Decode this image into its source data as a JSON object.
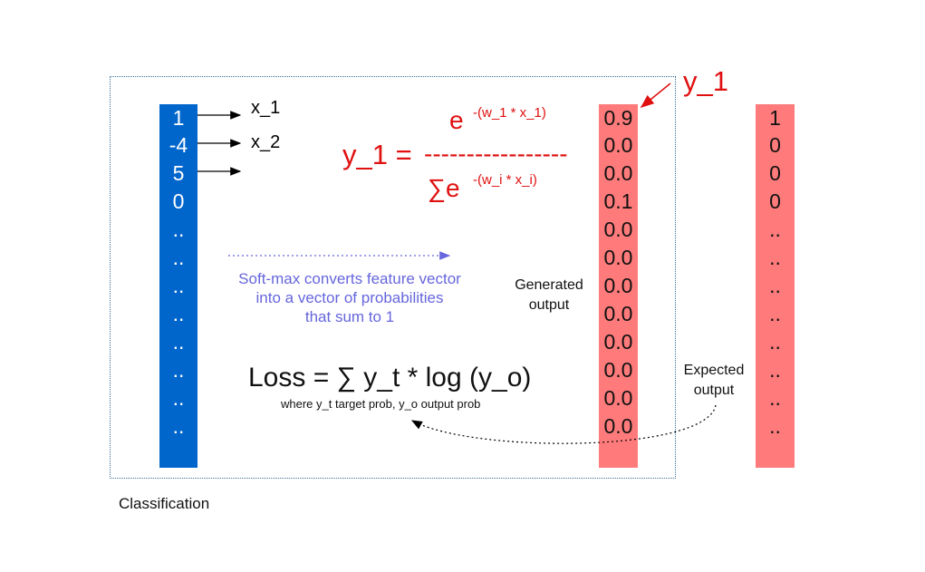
{
  "input_vector": {
    "values": [
      "1",
      "-4",
      "5",
      "0",
      "..",
      "..",
      "..",
      "..",
      "..",
      "..",
      "..",
      ".."
    ],
    "arrow_labels": [
      "x_1",
      "x_2"
    ]
  },
  "formula": {
    "lhs": "y_1 =",
    "numerator_base": "e",
    "numerator_exp": "-(w_1 * x_1)",
    "divider": "-----------------",
    "denominator_base": "∑e",
    "denominator_exp": "-(w_i * x_i)"
  },
  "caption": {
    "lines": [
      "Soft-max converts feature vector",
      "into a vector of probabilities",
      "that sum to 1"
    ]
  },
  "loss": {
    "formula": "Loss = ∑ y_t * log (y_o)",
    "note": "where y_t target prob, y_o output prob"
  },
  "generated": {
    "label_lines": [
      "Generated",
      "output"
    ],
    "values": [
      "0.9",
      "0.0",
      "0.0",
      "0.1",
      "0.0",
      "0.0",
      "0.0",
      "0.0",
      "0.0",
      "0.0",
      "0.0",
      "0.0"
    ]
  },
  "expected": {
    "label_lines": [
      "Expected",
      "output"
    ],
    "values": [
      "1",
      "0",
      "0",
      "0",
      "..",
      "..",
      "..",
      "..",
      "..",
      "..",
      "..",
      ".."
    ]
  },
  "pointer_label": "y_1",
  "frame_title": "Classification",
  "colors": {
    "input_column": "#0066cc",
    "output_columns": "#ff7b7b",
    "formula": "#e01010",
    "caption": "#6666dd",
    "frame_border": "#3a6f9a"
  }
}
